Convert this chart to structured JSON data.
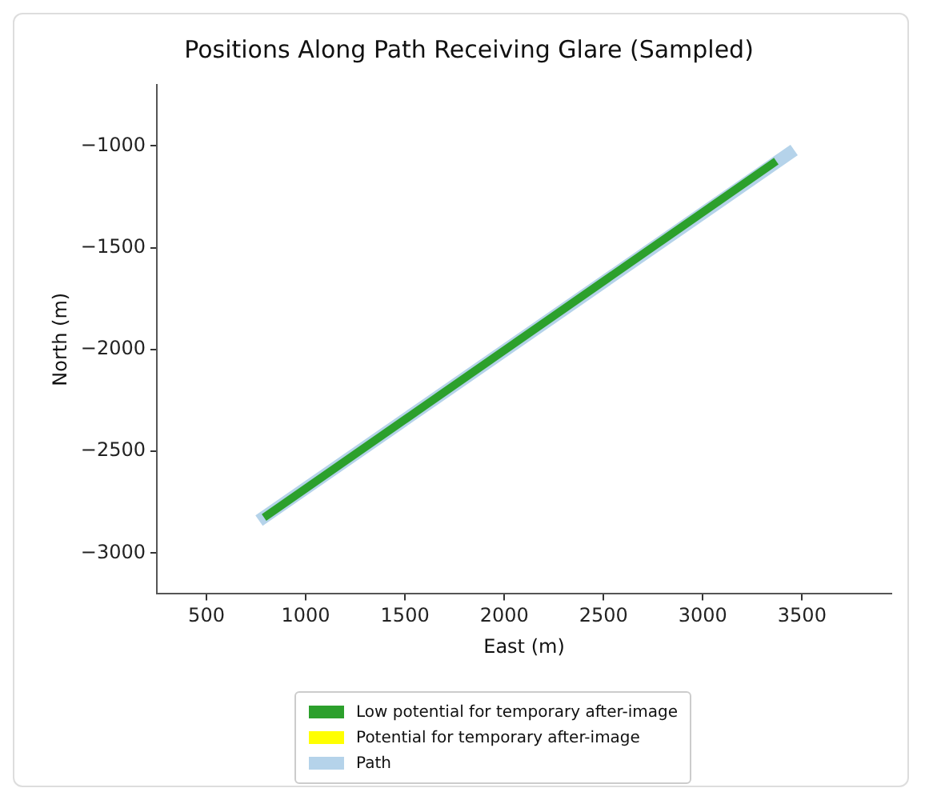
{
  "chart_data": {
    "type": "line",
    "title": "Positions Along Path Receiving Glare (Sampled)",
    "xlabel": "East (m)",
    "ylabel": "North (m)",
    "xlim": [
      250,
      3950
    ],
    "xticks": [
      500,
      1000,
      1500,
      2000,
      2500,
      3000,
      3500
    ],
    "ylim": [
      -3200,
      -700
    ],
    "yticks": [
      -3000,
      -2500,
      -2000,
      -1500,
      -1000
    ],
    "grid": false,
    "legend": "bottom",
    "marker": "none",
    "line_style": "solid",
    "series": [
      {
        "name": "Low potential for temporary after-image",
        "color": "#2ca02c",
        "x": [
          790,
          3370
        ],
        "values": [
          -2825,
          -1075
        ]
      },
      {
        "name": "Potential for temporary after-image",
        "color": "#ffff00"
      },
      {
        "name": "Path",
        "color": "#b5d3ea",
        "x": [
          765,
          3460
        ],
        "values": [
          -2840,
          -1020
        ]
      }
    ]
  }
}
